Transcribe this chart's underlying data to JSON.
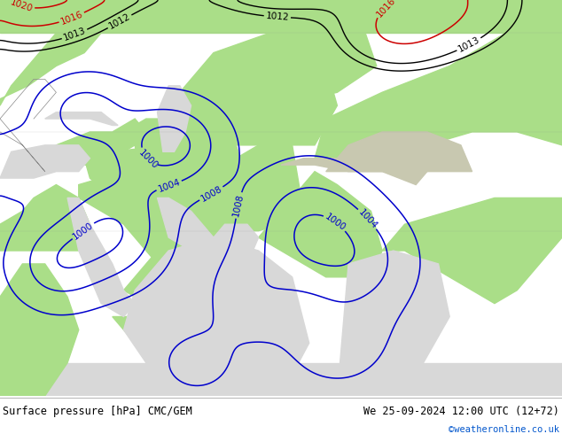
{
  "title_left": "Surface pressure [hPa] CMC/GEM",
  "title_right": "We 25-09-2024 12:00 UTC (12+72)",
  "copyright": "©weatheronline.co.uk",
  "land_color": "#aade88",
  "sea_color": "#d8d8d8",
  "mountain_color": "#c8c8b0",
  "footer_bg": "#ffffff",
  "footer_text_color": "#000000",
  "copyright_color": "#0055cc",
  "contour_color_high": "#cc0000",
  "contour_color_low": "#0000cc",
  "contour_color_black": "#000000",
  "border_color": "#888888",
  "figsize": [
    6.34,
    4.9
  ],
  "dpi": 100
}
